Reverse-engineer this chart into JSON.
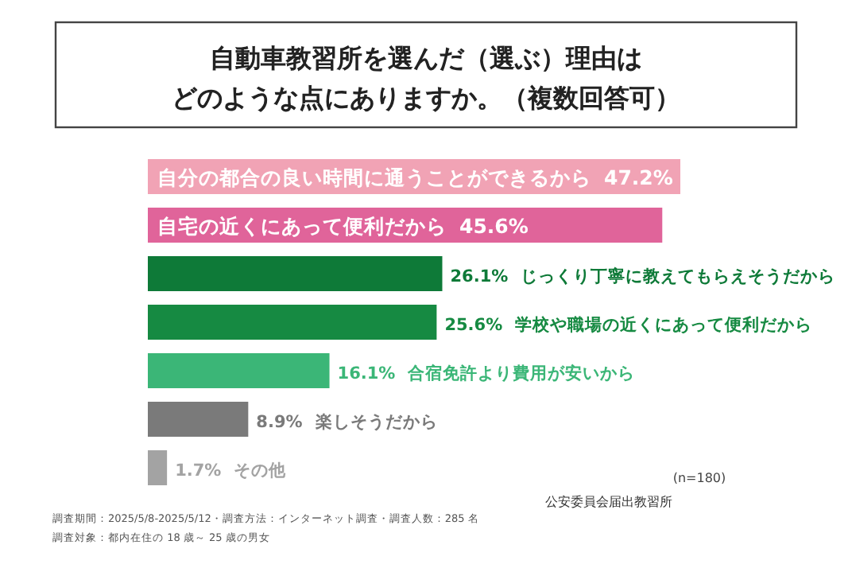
{
  "chart_data": {
    "type": "bar",
    "orientation": "horizontal",
    "title": "自動車教習所を選んだ（選ぶ）理由はどのような点にありますか。（複数回答可）",
    "categories": [
      "自分の都合の良い時間に通うことができるから",
      "自宅の近くにあって便利だから",
      "じっくり丁寧に教えてもらえそうだから",
      "学校や職場の近くにあって便利だから",
      "合宿免許より費用が安いから",
      "楽しそうだから",
      "その他"
    ],
    "values": [
      47.2,
      45.6,
      26.1,
      25.6,
      16.1,
      8.9,
      1.7
    ],
    "value_labels": [
      "47.2%",
      "45.6%",
      "26.1%",
      "25.6%",
      "16.1%",
      "8.9%",
      "1.7%"
    ],
    "colors": [
      "#f1a3b5",
      "#e0649a",
      "#0e7a38",
      "#168a42",
      "#3bb677",
      "#7a7a7a",
      "#a3a3a3"
    ],
    "annotations": [
      "(n=180)",
      "調査期間：2025/5/8-2025/5/12・調査方法：インターネット調査・調査人数：285 名",
      "調査対象：都内在住の 18 歳～ 25 歳の男女",
      "公安委員会届出教習所"
    ]
  }
}
